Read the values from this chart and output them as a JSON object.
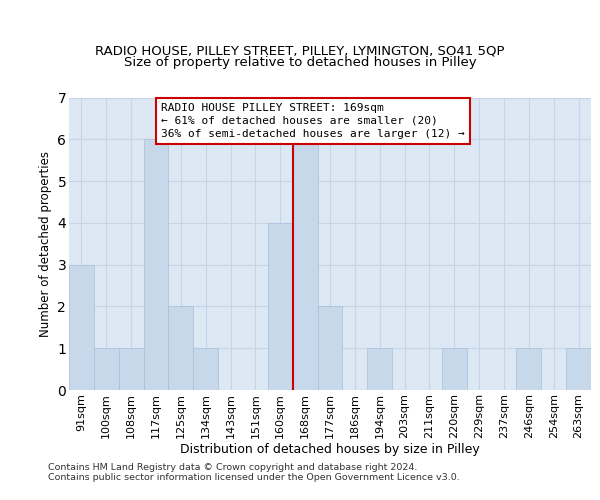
{
  "title": "RADIO HOUSE, PILLEY STREET, PILLEY, LYMINGTON, SO41 5QP",
  "subtitle": "Size of property relative to detached houses in Pilley",
  "xlabel": "Distribution of detached houses by size in Pilley",
  "ylabel": "Number of detached properties",
  "categories": [
    "91sqm",
    "100sqm",
    "108sqm",
    "117sqm",
    "125sqm",
    "134sqm",
    "143sqm",
    "151sqm",
    "160sqm",
    "168sqm",
    "177sqm",
    "186sqm",
    "194sqm",
    "203sqm",
    "211sqm",
    "220sqm",
    "229sqm",
    "237sqm",
    "246sqm",
    "254sqm",
    "263sqm"
  ],
  "values": [
    3,
    1,
    1,
    6,
    2,
    1,
    0,
    0,
    4,
    6,
    2,
    0,
    1,
    0,
    0,
    1,
    0,
    0,
    1,
    0,
    1
  ],
  "bar_color": "#c8d8eb",
  "bar_edge_color": "#a8c0d8",
  "reference_line_x": 8.5,
  "reference_line_color": "#cc0000",
  "annotation_line1": "RADIO HOUSE PILLEY STREET: 169sqm",
  "annotation_line2": "← 61% of detached houses are smaller (20)",
  "annotation_line3": "36% of semi-detached houses are larger (12) →",
  "annotation_box_facecolor": "#ffffff",
  "annotation_box_edgecolor": "#cc0000",
  "ylim": [
    0,
    7
  ],
  "yticks": [
    0,
    1,
    2,
    3,
    4,
    5,
    6,
    7
  ],
  "grid_color": "#c8d4e4",
  "background_color": "#dde8f5",
  "footer_text": "Contains HM Land Registry data © Crown copyright and database right 2024.\nContains public sector information licensed under the Open Government Licence v3.0.",
  "title_fontsize": 9.5,
  "subtitle_fontsize": 9.5,
  "xlabel_fontsize": 9,
  "ylabel_fontsize": 8.5,
  "tick_fontsize": 8,
  "annotation_fontsize": 8,
  "footer_fontsize": 6.8
}
